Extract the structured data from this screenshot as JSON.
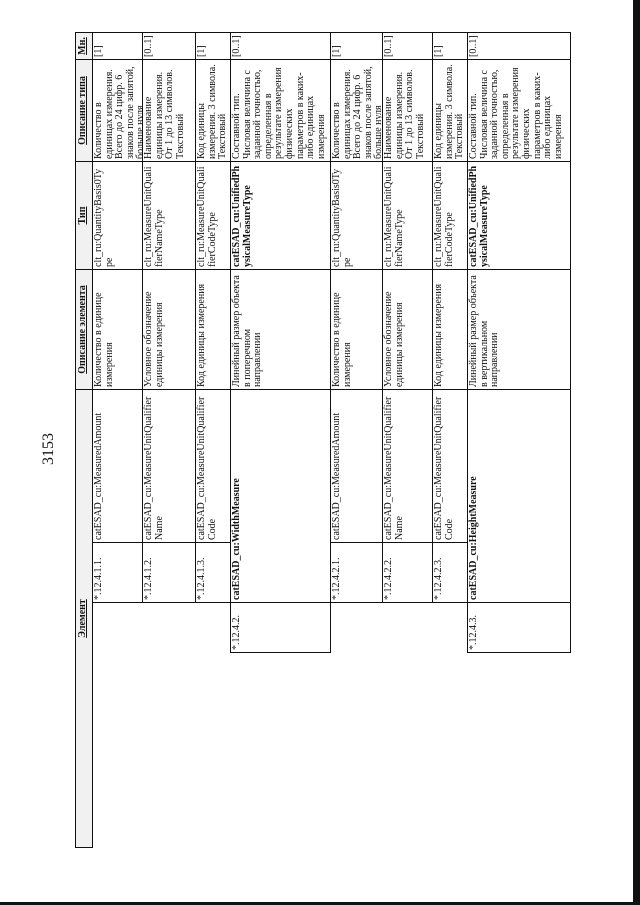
{
  "page_number": "3153",
  "table": {
    "headers": {
      "element": "Элемент",
      "element_description": "Описание элемента",
      "type": "Тип",
      "type_description": "Описание типа",
      "multiplicity": "Мн."
    },
    "rows": [
      {
        "number": "*.12.4.1.1.",
        "name": "catESAD_cu:MeasuredAmount",
        "description": "Количество в единице измерения",
        "type": "clt_ru:QuantityBasis0Type",
        "type_description": "Количество в единицах измерения. Всего до 24 цифр. 6 знаков после запятой, больше нуля",
        "multiplicity": "[1]",
        "level": "child",
        "bold": false
      },
      {
        "number": "*.12.4.1.2.",
        "name": "catESAD_cu:MeasureUnitQualifierName",
        "description": "Условное обозначение единицы измерения",
        "type": "clt_ru:MeasureUnitQualifierNameType",
        "type_description": "Наименование единицы измерения. От 1 до 13 символов. Текстовый",
        "multiplicity": "[0..1]",
        "level": "child",
        "bold": false
      },
      {
        "number": "*.12.4.1.3.",
        "name": "catESAD_cu:MeasureUnitQualifierCode",
        "description": "Код единицы измерения",
        "type": "clt_ru:MeasureUnitQualifierCodeType",
        "type_description": "Код единицы измерения. 3 символа. Текстовый",
        "multiplicity": "[1]",
        "level": "child",
        "bold": false
      },
      {
        "number": "*.12.4.2.",
        "name": "catESAD_cu:WidthMeasure",
        "description": "Линейный размер объекта в поперечном направлении",
        "type": "catESAD_cu:UnifiedPhysicalMeasureType",
        "type_description": "Составной тип. Числовая величина с заданной точностью, определенная в результате измерения физических параметров в каких-либо единицах измерения",
        "multiplicity": "[0..1]",
        "level": "parent",
        "bold": true
      },
      {
        "number": "*.12.4.2.1.",
        "name": "catESAD_cu:MeasuredAmount",
        "description": "Количество в единице измерения",
        "type": "clt_ru:QuantityBasis0Type",
        "type_description": "Количество в единицах измерения. Всего до 24 цифр. 6 знаков после запятой, больше нуля",
        "multiplicity": "[1]",
        "level": "child",
        "bold": false
      },
      {
        "number": "*.12.4.2.2.",
        "name": "catESAD_cu:MeasureUnitQualifierName",
        "description": "Условное обозначение единицы измерения",
        "type": "clt_ru:MeasureUnitQualifierNameType",
        "type_description": "Наименование единицы измерения. От 1 до 13 символов. Текстовый",
        "multiplicity": "[0..1]",
        "level": "child",
        "bold": false
      },
      {
        "number": "*.12.4.2.3.",
        "name": "catESAD_cu:MeasureUnitQualifierCode",
        "description": "Код единицы измерения",
        "type": "clt_ru:MeasureUnitQualifierCodeType",
        "type_description": "Код единицы измерения. 3 символа. Текстовый",
        "multiplicity": "[1]",
        "level": "child",
        "bold": false
      },
      {
        "number": "*.12.4.3.",
        "name": "catESAD_cu:HeightMeasure",
        "description": "Линейный размер объекта в вертикальном направлении",
        "type": "catESAD_cu:UnifiedPhysicalMeasureType",
        "type_description": "Составной тип. Числовая величина с заданной точностью, определенная в результате измерения физических параметров в каких-либо единицах измерения",
        "multiplicity": "[0..1]",
        "level": "parent",
        "bold": true
      }
    ]
  }
}
